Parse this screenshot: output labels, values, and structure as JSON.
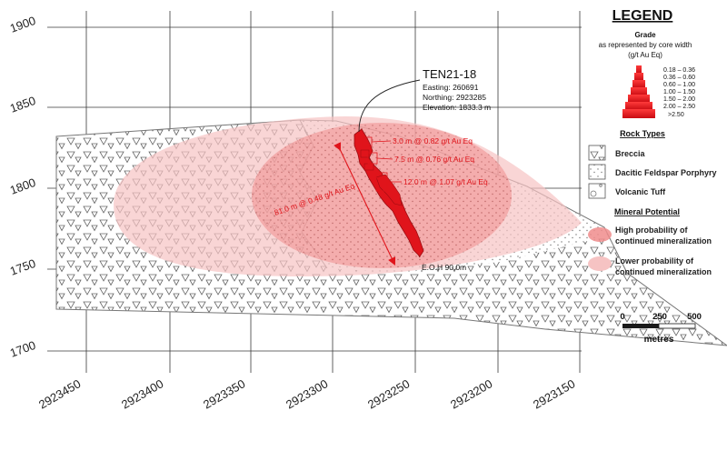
{
  "axes": {
    "y_ticks": [
      "1900",
      "1850",
      "1800",
      "1750",
      "1700"
    ],
    "x_ticks": [
      "2923450",
      "2923400",
      "2923350",
      "2923300",
      "2923250",
      "2923200",
      "2923150"
    ]
  },
  "drillhole": {
    "name": "TEN21-18",
    "easting": "Easting: 260691",
    "northing": "Northing: 2923285",
    "elevation": "Elevation: 1833.3 m",
    "eoh": "E.O.H 90.0m",
    "color": "#e0141b"
  },
  "intercepts": [
    "3.0 m @ 0.82 g/t Au Eq",
    "7.5 m @ 0.76 g/t Au Eq",
    "12.0 m @ 1.07 g/t Au Eq",
    "81.0 m @ 0.48 g/t Au Eq"
  ],
  "legend": {
    "title": "LEGEND",
    "grade_title": "Grade",
    "grade_subtitle": "as represented by core width",
    "grade_unit": "(g/t Au Eq)",
    "grade_ranges": [
      "0.18 – 0.36",
      "0.36 – 0.60",
      "0.60 – 1.00",
      "1.00 – 1.50",
      "1.50 – 2.00",
      "2.00 – 2.50",
      ">2.50"
    ],
    "rock_types_title": "Rock Types",
    "rock_types": [
      "Breccia",
      "Dacitic Feldspar Porphyry",
      "Volcanic Tuff"
    ],
    "mineral_potential_title": "Mineral Potential",
    "high_potential": [
      "High probability of",
      "continued mineralization"
    ],
    "low_potential": [
      "Lower probability of",
      "continued mineralization"
    ]
  },
  "scale_bar": {
    "labels": [
      "0",
      "250",
      "500"
    ],
    "unit": "metres"
  },
  "colors": {
    "high_zone": "#f08c8c",
    "low_zone": "#f6c3c3",
    "grid": "#3a3a3a",
    "section_outline": "#777777"
  }
}
